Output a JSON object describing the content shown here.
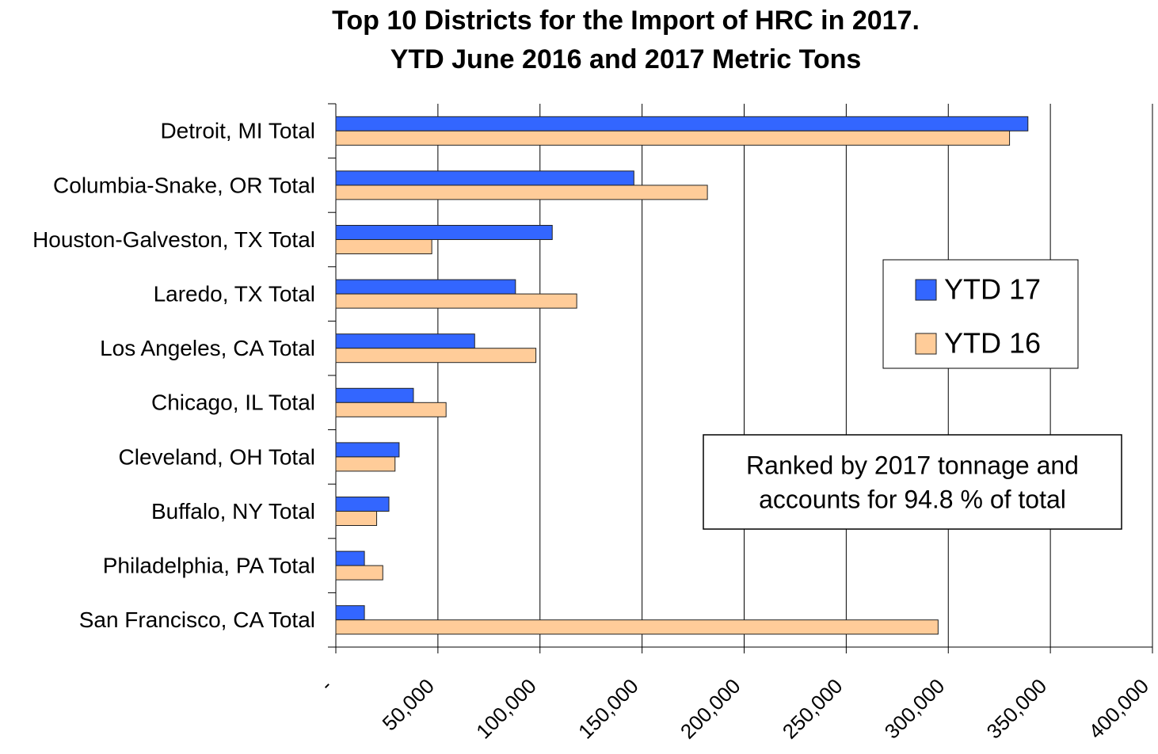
{
  "chart_data": {
    "type": "hbar",
    "title": "Top 10 Districts for the Import of HRC in 2017.",
    "subtitle": "YTD June 2016 and 2017 Metric Tons",
    "categories": [
      "Detroit, MI Total",
      "Columbia-Snake, OR Total",
      "Houston-Galveston, TX Total",
      "Laredo, TX Total",
      "Los Angeles, CA Total",
      "Chicago, IL Total",
      "Cleveland, OH Total",
      "Buffalo, NY Total",
      "Philadelphia, PA Total",
      "San Francisco, CA Total"
    ],
    "series": [
      {
        "name": "YTD 17",
        "color": "#3366ff",
        "values": [
          339000,
          146000,
          106000,
          88000,
          68000,
          38000,
          31000,
          26000,
          14000,
          14000
        ]
      },
      {
        "name": "YTD 16",
        "color": "#ffcc99",
        "values": [
          330000,
          182000,
          47000,
          118000,
          98000,
          54000,
          29000,
          20000,
          23000,
          295000
        ]
      }
    ],
    "xlim": [
      0,
      400000
    ],
    "xticks": [
      {
        "value": 0,
        "label": "-"
      },
      {
        "value": 50000,
        "label": "50,000"
      },
      {
        "value": 100000,
        "label": "100,000"
      },
      {
        "value": 150000,
        "label": "150,000"
      },
      {
        "value": 200000,
        "label": "200,000"
      },
      {
        "value": 250000,
        "label": "250,000"
      },
      {
        "value": 300000,
        "label": "300,000"
      },
      {
        "value": 350000,
        "label": "350,000"
      },
      {
        "value": 400000,
        "label": "400,000"
      }
    ],
    "grid": true,
    "legend": "right",
    "annotation": [
      "Ranked by 2017 tonnage and",
      "accounts for 94.8 % of total"
    ]
  }
}
